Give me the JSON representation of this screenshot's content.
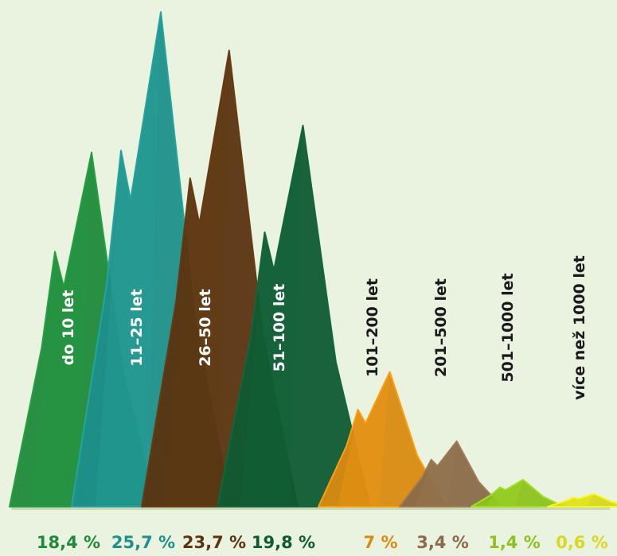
{
  "chart_data": {
    "type": "area",
    "title": "",
    "xlabel": "",
    "ylabel": "",
    "unit": "%",
    "categories": [
      "do 10 let",
      "11–25 let",
      "26–50 let",
      "51–100 let",
      "101–200 let",
      "201–500 let",
      "501–1000 let",
      "více než 1000 let"
    ],
    "values": [
      18.4,
      25.7,
      23.7,
      19.8,
      7,
      3.4,
      1.4,
      0.6
    ],
    "value_labels": [
      "18,4 %",
      "25,7 %",
      "23,7 %",
      "19,8 %",
      "7 %",
      "3,4 %",
      "1,4 %",
      "0,6 %"
    ],
    "colors": [
      "#1f8a3a",
      "#1e8f8a",
      "#5a3310",
      "#0f5a32",
      "#d98a10",
      "#8a6a48",
      "#8cc21e",
      "#d8d81e"
    ],
    "label_colors": [
      "#ffffff",
      "#ffffff",
      "#ffffff",
      "#ffffff",
      "#1a1a1a",
      "#1a1a1a",
      "#1a1a1a",
      "#1a1a1a"
    ],
    "style": "overlapping mountain peaks",
    "legend": "none"
  }
}
